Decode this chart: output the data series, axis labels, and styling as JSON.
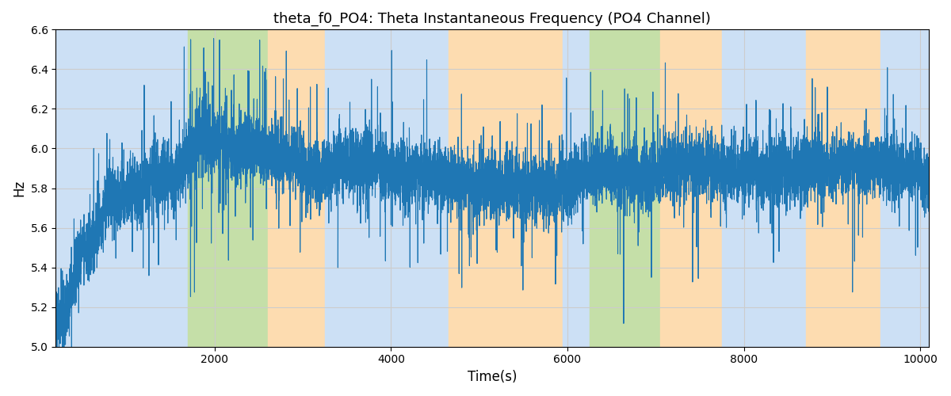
{
  "title": "theta_f0_PO4: Theta Instantaneous Frequency (PO4 Channel)",
  "xlabel": "Time(s)",
  "ylabel": "Hz",
  "xlim": [
    200,
    10100
  ],
  "ylim": [
    5.0,
    6.6
  ],
  "yticks": [
    5.0,
    5.2,
    5.4,
    5.6,
    5.8,
    6.0,
    6.2,
    6.4,
    6.6
  ],
  "xticks": [
    2000,
    4000,
    6000,
    8000,
    10000
  ],
  "line_color": "#1f77b4",
  "line_width": 0.8,
  "seed": 42,
  "background_color": "#ffffff",
  "grid_color": "#cccccc",
  "bg_regions": [
    {
      "start": 200,
      "end": 1700,
      "color": "#cce0f5"
    },
    {
      "start": 1700,
      "end": 2600,
      "color": "#c5dfa8"
    },
    {
      "start": 2600,
      "end": 3250,
      "color": "#fddcb0"
    },
    {
      "start": 3250,
      "end": 4650,
      "color": "#cce0f5"
    },
    {
      "start": 4650,
      "end": 5950,
      "color": "#fddcb0"
    },
    {
      "start": 5950,
      "end": 6250,
      "color": "#cce0f5"
    },
    {
      "start": 6250,
      "end": 7050,
      "color": "#c5dfa8"
    },
    {
      "start": 7050,
      "end": 7750,
      "color": "#fddcb0"
    },
    {
      "start": 7750,
      "end": 8700,
      "color": "#cce0f5"
    },
    {
      "start": 8700,
      "end": 9550,
      "color": "#fddcb0"
    },
    {
      "start": 9550,
      "end": 10100,
      "color": "#cce0f5"
    }
  ],
  "figsize": [
    12.0,
    5.0
  ],
  "dpi": 100
}
